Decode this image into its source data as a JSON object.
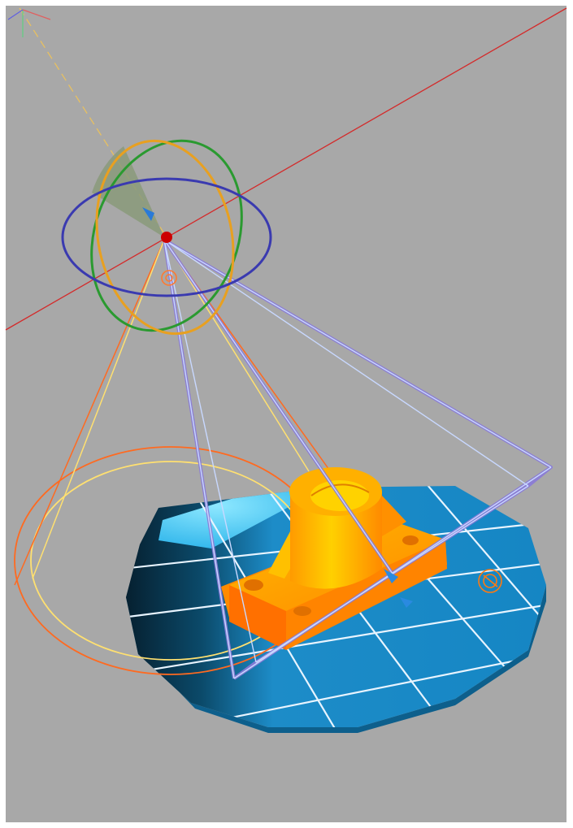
{
  "viewport": {
    "background": "#a8a8a8",
    "frame_color": "#ffffff"
  },
  "colors": {
    "x_axis": "#d42a2a",
    "gizmo_x_ring": "#e8a020",
    "gizmo_y_ring": "#2a9a30",
    "gizmo_z_ring": "#3a3ab0",
    "spot_hotspot": "#ffe070",
    "spot_falloff": "#ff6a20",
    "light_frame": "#8888ff",
    "part_body": "#ffa000",
    "ground_disc": "#1a8fd0",
    "grid_lines": "#e8f4ff"
  },
  "scene": {
    "objects": [
      "axis-gizmo",
      "rotate-gizmo",
      "spotlight-cone",
      "area-light-frame",
      "bracket-part",
      "ground-disc",
      "target-gizmo"
    ],
    "icons": [
      "rotate-gizmo-icon",
      "spotlight-icon",
      "light-target-icon",
      "light-handle-icon"
    ]
  }
}
